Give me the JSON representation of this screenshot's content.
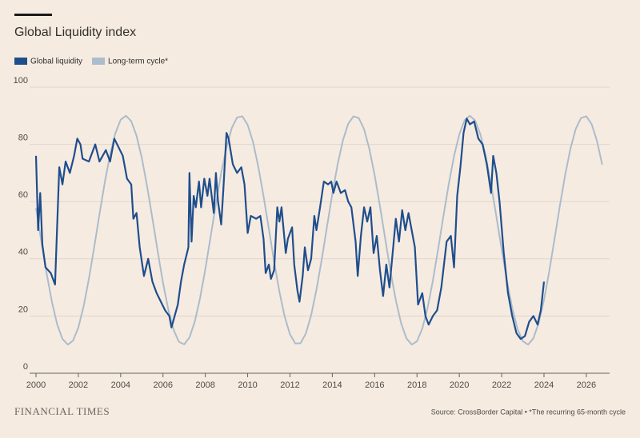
{
  "chart_data": {
    "type": "line",
    "title": "Global Liquidity index",
    "brand": "FINANCIAL TIMES",
    "source": "Source: CrossBorder Capital • *The recurring 65-month cycle",
    "xlim": [
      2000,
      2027.1
    ],
    "xticks": [
      2000,
      2002,
      2004,
      2006,
      2008,
      2010,
      2012,
      2014,
      2016,
      2018,
      2020,
      2022,
      2024,
      2026
    ],
    "ylim": [
      0,
      100
    ],
    "yticks": [
      0,
      20,
      40,
      60,
      80,
      100
    ],
    "grid": true,
    "series": [
      {
        "name": "Global liquidity",
        "color": "#1f4e8c",
        "x": [
          2000.0,
          2000.1,
          2000.2,
          2000.3,
          2000.45,
          2000.7,
          2000.9,
          2001.1,
          2001.25,
          2001.4,
          2001.6,
          2001.8,
          2001.95,
          2002.1,
          2002.2,
          2002.5,
          2002.8,
          2003.0,
          2003.3,
          2003.5,
          2003.7,
          2003.9,
          2004.1,
          2004.3,
          2004.5,
          2004.6,
          2004.75,
          2004.9,
          2005.1,
          2005.3,
          2005.5,
          2005.7,
          2005.9,
          2006.1,
          2006.3,
          2006.4,
          2006.55,
          2006.7,
          2006.85,
          2007.0,
          2007.2,
          2007.25,
          2007.35,
          2007.45,
          2007.55,
          2007.7,
          2007.8,
          2007.95,
          2008.1,
          2008.2,
          2008.4,
          2008.5,
          2008.6,
          2008.75,
          2008.85,
          2009.0,
          2009.1,
          2009.3,
          2009.5,
          2009.7,
          2009.85,
          2010.0,
          2010.15,
          2010.4,
          2010.6,
          2010.75,
          2010.85,
          2011.0,
          2011.1,
          2011.25,
          2011.4,
          2011.5,
          2011.6,
          2011.8,
          2011.9,
          2012.1,
          2012.2,
          2012.35,
          2012.45,
          2012.6,
          2012.7,
          2012.85,
          2013.0,
          2013.15,
          2013.25,
          2013.4,
          2013.6,
          2013.8,
          2013.95,
          2014.05,
          2014.2,
          2014.4,
          2014.6,
          2014.75,
          2014.9,
          2015.1,
          2015.2,
          2015.35,
          2015.5,
          2015.65,
          2015.8,
          2015.95,
          2016.1,
          2016.25,
          2016.4,
          2016.55,
          2016.7,
          2016.85,
          2017.0,
          2017.15,
          2017.3,
          2017.45,
          2017.6,
          2017.75,
          2017.9,
          2018.05,
          2018.25,
          2018.4,
          2018.55,
          2018.75,
          2018.95,
          2019.15,
          2019.4,
          2019.6,
          2019.75,
          2019.9,
          2020.05,
          2020.2,
          2020.35,
          2020.5,
          2020.7,
          2020.9,
          2021.1,
          2021.3,
          2021.5,
          2021.6,
          2021.75,
          2021.9,
          2022.1,
          2022.3,
          2022.5,
          2022.7,
          2022.9,
          2023.1,
          2023.3,
          2023.5,
          2023.7,
          2023.85,
          2024.0
        ],
        "values": [
          76,
          50,
          63,
          45,
          37,
          35,
          31,
          72,
          66,
          74,
          70,
          76,
          82,
          80,
          75,
          74,
          80,
          74,
          78,
          74,
          82,
          79,
          76,
          68,
          66,
          54,
          56,
          44,
          34,
          40,
          32,
          28,
          25,
          22,
          20,
          16,
          20,
          24,
          32,
          38,
          44,
          70,
          46,
          62,
          58,
          67,
          58,
          68,
          62,
          68,
          56,
          70,
          60,
          52,
          64,
          84,
          82,
          73,
          70,
          72,
          66,
          49,
          55,
          54,
          55,
          47,
          35,
          38,
          33,
          36,
          58,
          53,
          58,
          42,
          47,
          51,
          38,
          29,
          25,
          34,
          44,
          36,
          40,
          55,
          50,
          57,
          67,
          66,
          67,
          63,
          67,
          63,
          64,
          60,
          58,
          46,
          34,
          48,
          58,
          53,
          58,
          42,
          48,
          36,
          27,
          38,
          30,
          42,
          54,
          46,
          57,
          50,
          56,
          50,
          44,
          24,
          28,
          20,
          17,
          20,
          22,
          30,
          46,
          48,
          37,
          62,
          72,
          84,
          89,
          87,
          88,
          82,
          80,
          73,
          63,
          76,
          70,
          60,
          42,
          28,
          20,
          14,
          12,
          13,
          18,
          20,
          17,
          22,
          32
        ]
      },
      {
        "name": "Long-term cycle*",
        "color": "#abbccb",
        "x": [
          2000,
          2000.25,
          2000.5,
          2000.75,
          2001,
          2001.25,
          2001.5,
          2001.75,
          2002,
          2002.25,
          2002.5,
          2002.75,
          2003,
          2003.25,
          2003.5,
          2003.75,
          2004,
          2004.25,
          2004.5,
          2004.75,
          2005,
          2005.25,
          2005.5,
          2005.75,
          2006,
          2006.25,
          2006.5,
          2006.75,
          2007,
          2007.25,
          2007.5,
          2007.75,
          2008,
          2008.25,
          2008.5,
          2008.75,
          2009,
          2009.25,
          2009.5,
          2009.75,
          2010,
          2010.25,
          2010.5,
          2010.75,
          2011,
          2011.25,
          2011.5,
          2011.75,
          2012,
          2012.25,
          2012.5,
          2012.75,
          2013,
          2013.25,
          2013.5,
          2013.75,
          2014,
          2014.25,
          2014.5,
          2014.75,
          2015,
          2015.25,
          2015.5,
          2015.75,
          2016,
          2016.25,
          2016.5,
          2016.75,
          2017,
          2017.25,
          2017.5,
          2017.75,
          2018,
          2018.25,
          2018.5,
          2018.75,
          2019,
          2019.25,
          2019.5,
          2019.75,
          2020,
          2020.25,
          2020.5,
          2020.75,
          2021,
          2021.25,
          2021.5,
          2021.75,
          2022,
          2022.25,
          2022.5,
          2022.75,
          2023,
          2023.25,
          2023.5,
          2023.75,
          2024,
          2024.25,
          2024.5,
          2024.75,
          2025,
          2025.25,
          2025.5,
          2025.75,
          2026,
          2026.25,
          2026.5,
          2026.75
        ],
        "values": [
          57.7,
          46.2,
          35.0,
          25.0,
          17.1,
          12.0,
          10.0,
          11.4,
          16.0,
          23.4,
          33.0,
          44.1,
          55.6,
          66.7,
          76.4,
          83.9,
          88.6,
          90.0,
          88.1,
          83.0,
          75.2,
          65.3,
          54.1,
          42.6,
          31.6,
          22.3,
          15.2,
          11.0,
          10.1,
          12.5,
          18.0,
          26.2,
          36.4,
          47.7,
          59.2,
          70.0,
          79.0,
          85.7,
          89.4,
          89.8,
          86.8,
          80.9,
          72.3,
          61.9,
          50.5,
          39.0,
          28.5,
          19.8,
          13.6,
          10.4,
          10.5,
          13.9,
          20.3,
          29.2,
          39.8,
          51.3,
          62.7,
          73.0,
          81.4,
          87.2,
          89.8,
          89.2,
          85.3,
          78.4,
          69.2,
          58.4,
          46.9,
          35.6,
          25.5,
          17.5,
          12.2,
          10.0,
          11.2,
          15.6,
          22.8,
          32.4,
          43.4,
          55.0,
          66.1,
          75.9,
          83.5,
          88.4,
          90.0,
          88.3,
          83.4,
          75.8,
          66.0,
          54.8,
          43.3,
          32.3,
          22.8,
          15.5,
          11.2,
          10.0,
          12.2,
          17.6,
          25.6,
          35.7,
          47.0,
          58.5,
          69.3,
          78.5,
          85.4,
          89.2,
          89.8,
          87.1,
          81.3,
          72.9
        ]
      }
    ]
  }
}
